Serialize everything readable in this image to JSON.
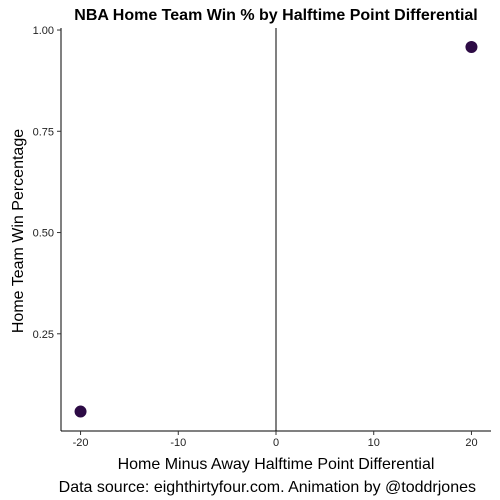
{
  "chart_data": {
    "type": "scatter",
    "title": "NBA Home Team Win % by Halftime Point Differential",
    "xlabel": "Home Minus Away Halftime Point Differential",
    "ylabel": "Home Team Win Percentage",
    "caption": "Data source: eighthirtyfour.com. Animation by @toddrjones",
    "x_ticks": [
      {
        "value": -20,
        "label": "-20"
      },
      {
        "value": -10,
        "label": "-10"
      },
      {
        "value": 0,
        "label": "0"
      },
      {
        "value": 10,
        "label": "10"
      },
      {
        "value": 20,
        "label": "20"
      }
    ],
    "y_ticks": [
      {
        "value": 0.25,
        "label": "0.25"
      },
      {
        "value": 0.5,
        "label": "0.50"
      },
      {
        "value": 0.75,
        "label": "0.75"
      },
      {
        "value": 1.0,
        "label": "1.00"
      }
    ],
    "xlim": [
      -22,
      22
    ],
    "ylim": [
      0.01,
      1.005
    ],
    "reference_line_x": 0,
    "grid": false,
    "point_color": "#2d0b45",
    "points": [
      {
        "x": -20,
        "y": 0.058
      },
      {
        "x": 20,
        "y": 0.958
      }
    ]
  }
}
